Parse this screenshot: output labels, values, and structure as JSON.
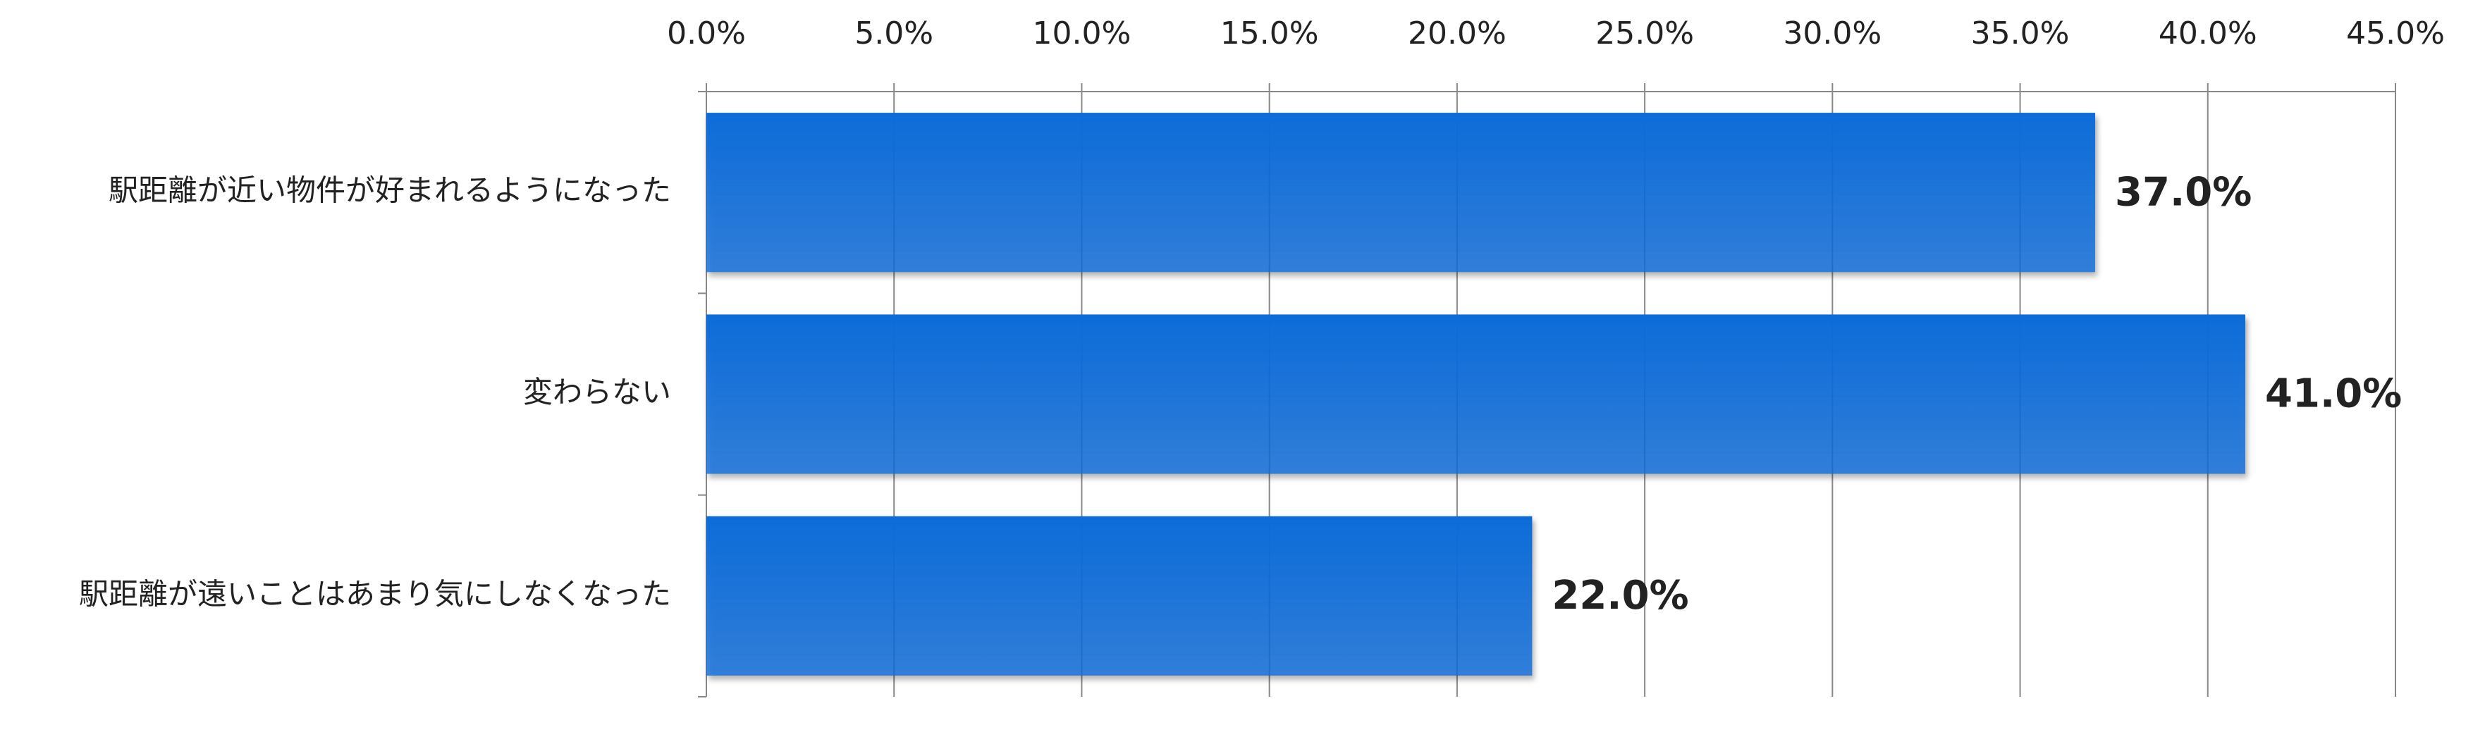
{
  "chart_data": {
    "type": "bar",
    "orientation": "horizontal",
    "categories": [
      "駅距離が近い物件が好まれるようになった",
      "変わらない",
      "駅距離が遠いことはあまり気にしなくなった"
    ],
    "values": [
      37,
      41,
      22
    ],
    "value_labels": [
      "37.0%",
      "41.0%",
      "22.0%"
    ],
    "color": "#0b6cd9",
    "xlim": [
      0,
      45
    ],
    "xticks": [
      {
        "value": 0,
        "label": "0.0%"
      },
      {
        "value": 5,
        "label": "5.0%"
      },
      {
        "value": 10,
        "label": "10.0%"
      },
      {
        "value": 15,
        "label": "15.0%"
      },
      {
        "value": 20,
        "label": "20.0%"
      },
      {
        "value": 25,
        "label": "25.0%"
      },
      {
        "value": 30,
        "label": "30.0%"
      },
      {
        "value": 35,
        "label": "35.0%"
      },
      {
        "value": 40,
        "label": "40.0%"
      },
      {
        "value": 45,
        "label": "45.0%"
      }
    ],
    "grid": true
  }
}
